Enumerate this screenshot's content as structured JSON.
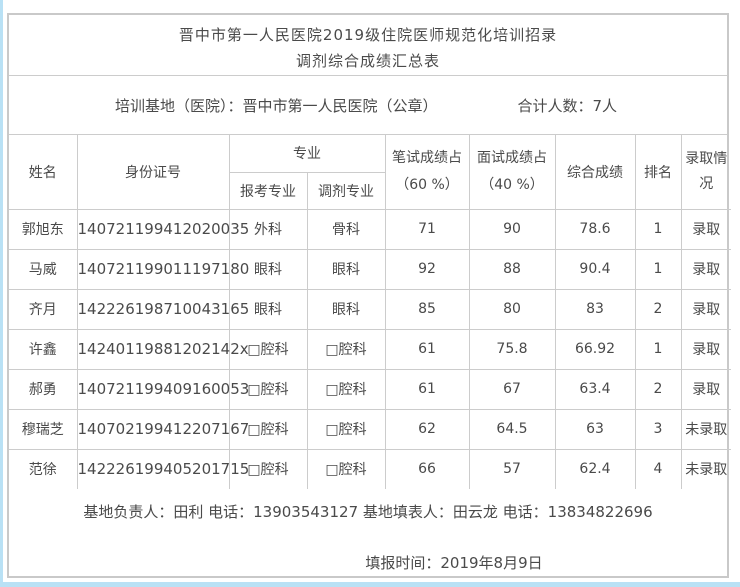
{
  "colors": {
    "accent_edge_blue": "#b9e1f5",
    "grid_line_gray": "#cccccc",
    "text_gray": "#4a4a4a"
  },
  "title": {
    "line1": "晋中市第一人民医院2019级住院医师规范化培训招录",
    "line2": "调剂综合成绩汇总表"
  },
  "info": {
    "base_label": "培训基地（医院）：晋中市第一人民医院（公章）",
    "total_label": "合计人数：7人"
  },
  "table": {
    "headers": {
      "name": "姓名",
      "id_number": "身份证号",
      "major_group": "专业",
      "applied_major": "报考专业",
      "adjusted_major": "调剂专业",
      "written_line1": "笔试成绩占",
      "written_line2": "（60 %）",
      "interview_line1": "面试成绩占",
      "interview_line2": "（40 %）",
      "comprehensive": "综合成绩",
      "rank": "排名",
      "admission": "录取情况"
    },
    "rows": [
      {
        "name": "郭旭东",
        "id_number": "140721199412020035",
        "applied_major": "外科",
        "adjusted_major": "骨科",
        "written": "71",
        "interview": "90",
        "comprehensive": "78.6",
        "rank": "1",
        "admission": "录取"
      },
      {
        "name": "马威",
        "id_number": "140721199011197180",
        "applied_major": "眼科",
        "adjusted_major": "眼科",
        "written": "92",
        "interview": "88",
        "comprehensive": "90.4",
        "rank": "1",
        "admission": "录取"
      },
      {
        "name": "齐月",
        "id_number": "142226198710043165",
        "applied_major": "眼科",
        "adjusted_major": "眼科",
        "written": "85",
        "interview": "80",
        "comprehensive": "83",
        "rank": "2",
        "admission": "录取"
      },
      {
        "name": "许鑫",
        "id_number": "14240119881202142x",
        "applied_major": "□腔科",
        "adjusted_major": "□腔科",
        "written": "61",
        "interview": "75.8",
        "comprehensive": "66.92",
        "rank": "1",
        "admission": "录取"
      },
      {
        "name": "郝勇",
        "id_number": "140721199409160053",
        "applied_major": "□腔科",
        "adjusted_major": "□腔科",
        "written": "61",
        "interview": "67",
        "comprehensive": "63.4",
        "rank": "2",
        "admission": "录取"
      },
      {
        "name": "穆瑞芝",
        "id_number": "140702199412207167",
        "applied_major": "□腔科",
        "adjusted_major": "□腔科",
        "written": "62",
        "interview": "64.5",
        "comprehensive": "63",
        "rank": "3",
        "admission": "未录取"
      },
      {
        "name": "范徐",
        "id_number": "142226199405201715",
        "applied_major": "□腔科",
        "adjusted_major": "□腔科",
        "written": "66",
        "interview": "57",
        "comprehensive": "62.4",
        "rank": "4",
        "admission": "未录取"
      }
    ]
  },
  "footer": {
    "line1": "基地负责人：田利  电话：13903543127  基地填表人：田云龙  电话：13834822696",
    "line2": "填报时间：2019年8月9日"
  }
}
